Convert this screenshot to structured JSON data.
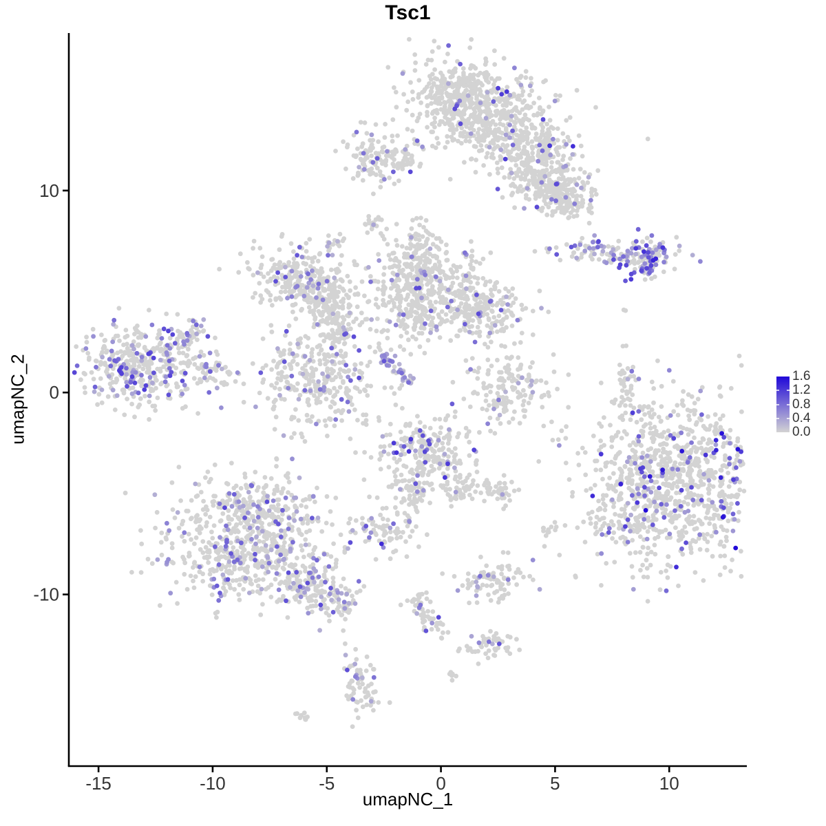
{
  "title": "Tsc1",
  "legend": {
    "labels": [
      "1.6",
      "1.2",
      "0.8",
      "0.4",
      "0.0"
    ],
    "min": 0.0,
    "max": 1.6
  },
  "colors": {
    "low": "#D3D3D3",
    "high": "#2008D8",
    "axis_line": "#000000",
    "tick_text": "#333333"
  },
  "chart_data": {
    "type": "scatter",
    "title": "Tsc1",
    "xlabel": "umapNC_1",
    "ylabel": "umapNC_2",
    "x_domain": [
      -16.3,
      13.4
    ],
    "y_domain": [
      -18.5,
      17.8
    ],
    "x_ticks": [
      "-15",
      "-10",
      "-5",
      "0",
      "5",
      "10"
    ],
    "x_tick_values": [
      -15,
      -10,
      -5,
      0,
      5,
      10
    ],
    "y_ticks": [
      "10",
      "0",
      "-10"
    ],
    "y_tick_values": [
      10,
      0,
      -10
    ],
    "expression_range": [
      0.0,
      1.6
    ],
    "point_radius": 3.4,
    "seed": 42,
    "grid": false,
    "legend_position": "right",
    "clusters": [
      {
        "name": "top-core",
        "kind": "g",
        "cx": 1.8,
        "cy": 13.9,
        "sx": 1.7,
        "sy": 1.15,
        "rot": -20,
        "n": 620,
        "frac": 0.055,
        "vmax": 1.3
      },
      {
        "name": "top-upper-left",
        "kind": "g",
        "cx": 0.8,
        "cy": 14.9,
        "sx": 0.8,
        "sy": 0.55,
        "rot": 0,
        "n": 110,
        "frac": 0.06,
        "vmax": 1.2
      },
      {
        "name": "top-right-arm",
        "kind": "g",
        "cx": 4.1,
        "cy": 11.5,
        "sx": 1.15,
        "sy": 0.8,
        "rot": -35,
        "n": 260,
        "frac": 0.06,
        "vmax": 1.2
      },
      {
        "name": "top-arm-lower",
        "kind": "g",
        "cx": 4.7,
        "cy": 9.9,
        "sx": 0.75,
        "sy": 0.55,
        "rot": -20,
        "n": 150,
        "frac": 0.09,
        "vmax": 1.2
      },
      {
        "name": "top-arm-tip",
        "kind": "g",
        "cx": 5.7,
        "cy": 9.5,
        "sx": 0.5,
        "sy": 0.35,
        "rot": 0,
        "n": 55,
        "frac": 0.05,
        "vmax": 1.0
      },
      {
        "name": "nub-a",
        "kind": "g",
        "cx": -2.95,
        "cy": 11.7,
        "sx": 0.55,
        "sy": 0.75,
        "rot": 15,
        "n": 105,
        "frac": 0.13,
        "vmax": 1.1
      },
      {
        "name": "nub-b",
        "kind": "g",
        "cx": -1.65,
        "cy": 11.55,
        "sx": 0.35,
        "sy": 0.3,
        "rot": 0,
        "n": 38,
        "frac": 0.05,
        "vmax": 1.0
      },
      {
        "name": "dot-c",
        "kind": "g",
        "cx": -2.85,
        "cy": 8.4,
        "sx": 0.25,
        "sy": 0.3,
        "rot": 0,
        "n": 20,
        "frac": 0.08,
        "vmax": 0.9
      },
      {
        "name": "dot-d",
        "kind": "g",
        "cx": -4.6,
        "cy": 7.4,
        "sx": 0.22,
        "sy": 0.28,
        "rot": 0,
        "n": 17,
        "frac": 0.3,
        "vmax": 0.9
      },
      {
        "name": "mid-right-strip",
        "kind": "g",
        "cx": 7.5,
        "cy": 6.85,
        "sx": 1.25,
        "sy": 0.3,
        "rot": -5,
        "n": 115,
        "frac": 0.35,
        "vmax": 1.2
      },
      {
        "name": "mid-right-head",
        "kind": "g",
        "cx": 9.25,
        "cy": 6.8,
        "sx": 0.55,
        "sy": 0.45,
        "rot": 0,
        "n": 68,
        "frac": 0.4,
        "vmax": 1.6
      },
      {
        "name": "mid-right-tail",
        "kind": "g",
        "cx": 8.85,
        "cy": 6.05,
        "sx": 0.3,
        "sy": 0.35,
        "rot": 45,
        "n": 24,
        "frac": 0.5,
        "vmax": 1.2
      },
      {
        "name": "web-nw",
        "kind": "g",
        "cx": -6.3,
        "cy": 5.6,
        "sx": 1.1,
        "sy": 0.8,
        "rot": -15,
        "n": 250,
        "frac": 0.1,
        "vmax": 1.1
      },
      {
        "name": "web-nw-b",
        "kind": "g",
        "cx": -5.15,
        "cy": 4.6,
        "sx": 0.5,
        "sy": 0.5,
        "rot": 0,
        "n": 65,
        "frac": 0.08,
        "vmax": 1.0
      },
      {
        "name": "web-w-arm",
        "kind": "g",
        "cx": -4.6,
        "cy": 3.4,
        "sx": 0.45,
        "sy": 0.85,
        "rot": 10,
        "n": 105,
        "frac": 0.07,
        "vmax": 1.0
      },
      {
        "name": "fan-top",
        "kind": "g",
        "cx": -0.7,
        "cy": 5.8,
        "sx": 1.35,
        "sy": 0.75,
        "rot": 0,
        "n": 290,
        "frac": 0.05,
        "vmax": 1.1
      },
      {
        "name": "fan-bottom",
        "kind": "g",
        "cx": -1.2,
        "cy": 4.1,
        "sx": 0.65,
        "sy": 0.85,
        "rot": 0,
        "n": 140,
        "frac": 0.05,
        "vmax": 1.0
      },
      {
        "name": "fan-upper-arm",
        "kind": "g",
        "cx": -0.95,
        "cy": 7.4,
        "sx": 0.3,
        "sy": 0.6,
        "rot": 0,
        "n": 48,
        "frac": 0.04,
        "vmax": 0.9
      },
      {
        "name": "web-e",
        "kind": "g",
        "cx": 1.6,
        "cy": 4.1,
        "sx": 1.0,
        "sy": 0.75,
        "rot": -10,
        "n": 220,
        "frac": 0.09,
        "vmax": 1.1
      },
      {
        "name": "web-connectors",
        "kind": "g",
        "cx": -2.9,
        "cy": 4.4,
        "sx": 1.15,
        "sy": 0.95,
        "rot": 0,
        "n": 55,
        "frac": 0.05,
        "vmax": 0.9
      },
      {
        "name": "purple-streak",
        "kind": "l",
        "x1": -2.6,
        "y1": 1.85,
        "x2": -1.15,
        "y2": 0.4,
        "w": 0.12,
        "n": 40,
        "frac": 0.8,
        "vmax": 1.0
      },
      {
        "name": "web-s",
        "kind": "g",
        "cx": -5.3,
        "cy": 0.6,
        "sx": 1.4,
        "sy": 1.25,
        "rot": 0,
        "n": 330,
        "frac": 0.1,
        "vmax": 1.1
      },
      {
        "name": "left-main",
        "kind": "g",
        "cx": -13.1,
        "cy": 1.3,
        "sx": 1.35,
        "sy": 1.0,
        "rot": -10,
        "n": 390,
        "frac": 0.22,
        "vmax": 1.25
      },
      {
        "name": "left-arm",
        "kind": "g",
        "cx": -11.15,
        "cy": 2.8,
        "sx": 0.55,
        "sy": 0.4,
        "rot": 35,
        "n": 50,
        "frac": 0.25,
        "vmax": 1.2
      },
      {
        "name": "left-fringe",
        "kind": "g",
        "cx": -10.1,
        "cy": 1.3,
        "sx": 0.6,
        "sy": 0.35,
        "rot": 0,
        "n": 42,
        "frac": 0.15,
        "vmax": 1.0
      },
      {
        "name": "mid-small-ring",
        "kind": "g",
        "cx": 3.1,
        "cy": 0.2,
        "sx": 1.0,
        "sy": 1.05,
        "rot": 0,
        "n": 165,
        "frac": 0.06,
        "vmax": 1.0
      },
      {
        "name": "thin-vertical",
        "kind": "g",
        "cx": 8.1,
        "cy": 0.5,
        "sx": 0.18,
        "sy": 0.75,
        "rot": 0,
        "n": 36,
        "frac": 0.05,
        "vmax": 0.9
      },
      {
        "name": "right-main",
        "kind": "g",
        "cx": 10.5,
        "cy": -4.3,
        "sx": 2.1,
        "sy": 2.05,
        "rot": 0,
        "n": 980,
        "frac": 0.11,
        "vmax": 1.6
      },
      {
        "name": "right-main-fringe",
        "kind": "g",
        "cx": 8.3,
        "cy": -4.9,
        "sx": 0.8,
        "sy": 1.9,
        "rot": 0,
        "n": 135,
        "frac": 0.12,
        "vmax": 1.2
      },
      {
        "name": "center-low",
        "kind": "g",
        "cx": -0.55,
        "cy": -3.1,
        "sx": 1.05,
        "sy": 0.95,
        "rot": 0,
        "n": 250,
        "frac": 0.14,
        "vmax": 1.3
      },
      {
        "name": "center-low-sw",
        "kind": "g",
        "cx": -1.2,
        "cy": -4.9,
        "sx": 0.4,
        "sy": 0.5,
        "rot": 0,
        "n": 48,
        "frac": 0.1,
        "vmax": 1.1
      },
      {
        "name": "center-low-se",
        "kind": "g",
        "cx": 0.95,
        "cy": -4.8,
        "sx": 0.55,
        "sy": 0.4,
        "rot": 0,
        "n": 42,
        "frac": 0.08,
        "vmax": 1.0
      },
      {
        "name": "pair-blob",
        "kind": "g",
        "cx": 2.45,
        "cy": -4.9,
        "sx": 0.4,
        "sy": 0.35,
        "rot": 0,
        "n": 38,
        "frac": 0.1,
        "vmax": 1.0
      },
      {
        "name": "tiny-pair",
        "kind": "g",
        "cx": 4.65,
        "cy": -6.7,
        "sx": 0.2,
        "sy": 0.25,
        "rot": 0,
        "n": 11,
        "frac": 0,
        "vmax": 0
      },
      {
        "name": "small-mid",
        "kind": "g",
        "cx": -2.4,
        "cy": -6.8,
        "sx": 0.75,
        "sy": 0.6,
        "rot": 20,
        "n": 85,
        "frac": 0.2,
        "vmax": 1.4
      },
      {
        "name": "bottom-left-top",
        "kind": "g",
        "cx": -8.1,
        "cy": -5.8,
        "sx": 1.5,
        "sy": 0.95,
        "rot": 0,
        "n": 290,
        "frac": 0.17,
        "vmax": 1.15
      },
      {
        "name": "bottom-left-main",
        "kind": "g",
        "cx": -8.5,
        "cy": -8.2,
        "sx": 1.9,
        "sy": 1.15,
        "rot": -5,
        "n": 470,
        "frac": 0.17,
        "vmax": 1.15
      },
      {
        "name": "bottom-left-tail",
        "kind": "l",
        "x1": -6.8,
        "y1": -9.1,
        "x2": -3.8,
        "y2": -10.6,
        "w": 0.45,
        "n": 165,
        "frac": 0.15,
        "vmax": 1.1
      },
      {
        "name": "bottom-small-a",
        "kind": "g",
        "cx": 2.3,
        "cy": -9.3,
        "sx": 0.8,
        "sy": 0.5,
        "rot": 10,
        "n": 90,
        "frac": 0.18,
        "vmax": 1.2
      },
      {
        "name": "bottom-chain",
        "kind": "l",
        "x1": -1.2,
        "y1": -10.1,
        "x2": 0.15,
        "y2": -12.1,
        "w": 0.28,
        "n": 60,
        "frac": 0.15,
        "vmax": 1.2
      },
      {
        "name": "bottom-small-b",
        "kind": "g",
        "cx": 2.1,
        "cy": -12.5,
        "sx": 0.65,
        "sy": 0.35,
        "rot": 20,
        "n": 50,
        "frac": 0.15,
        "vmax": 1.1
      },
      {
        "name": "bottom-small-c",
        "kind": "g",
        "cx": -3.45,
        "cy": -14.4,
        "sx": 0.35,
        "sy": 0.85,
        "rot": 15,
        "n": 70,
        "frac": 0.15,
        "vmax": 1.1
      },
      {
        "name": "tiny-s",
        "kind": "g",
        "cx": 0.55,
        "cy": -13.9,
        "sx": 0.15,
        "sy": 0.2,
        "rot": 0,
        "n": 6,
        "frac": 0,
        "vmax": 0
      },
      {
        "name": "tiny-t",
        "kind": "l",
        "x1": -6.4,
        "y1": -15.9,
        "x2": -5.85,
        "y2": -16.15,
        "w": 0.1,
        "n": 10,
        "frac": 0,
        "vmax": 0
      },
      {
        "name": "stray-1",
        "kind": "g",
        "cx": 8.0,
        "cy": 4.0,
        "sx": 0.1,
        "sy": 0.1,
        "rot": 0,
        "n": 2,
        "frac": 0,
        "vmax": 0
      },
      {
        "name": "stray-2",
        "kind": "g",
        "cx": 4.9,
        "cy": -2.3,
        "sx": 0.08,
        "sy": 0.08,
        "rot": 0,
        "n": 2,
        "frac": 0,
        "vmax": 0
      },
      {
        "name": "stray-3",
        "kind": "g",
        "cx": -3.0,
        "cy": 9.9,
        "sx": 0.1,
        "sy": 0.1,
        "rot": 0,
        "n": 1,
        "frac": 0,
        "vmax": 0
      }
    ]
  }
}
